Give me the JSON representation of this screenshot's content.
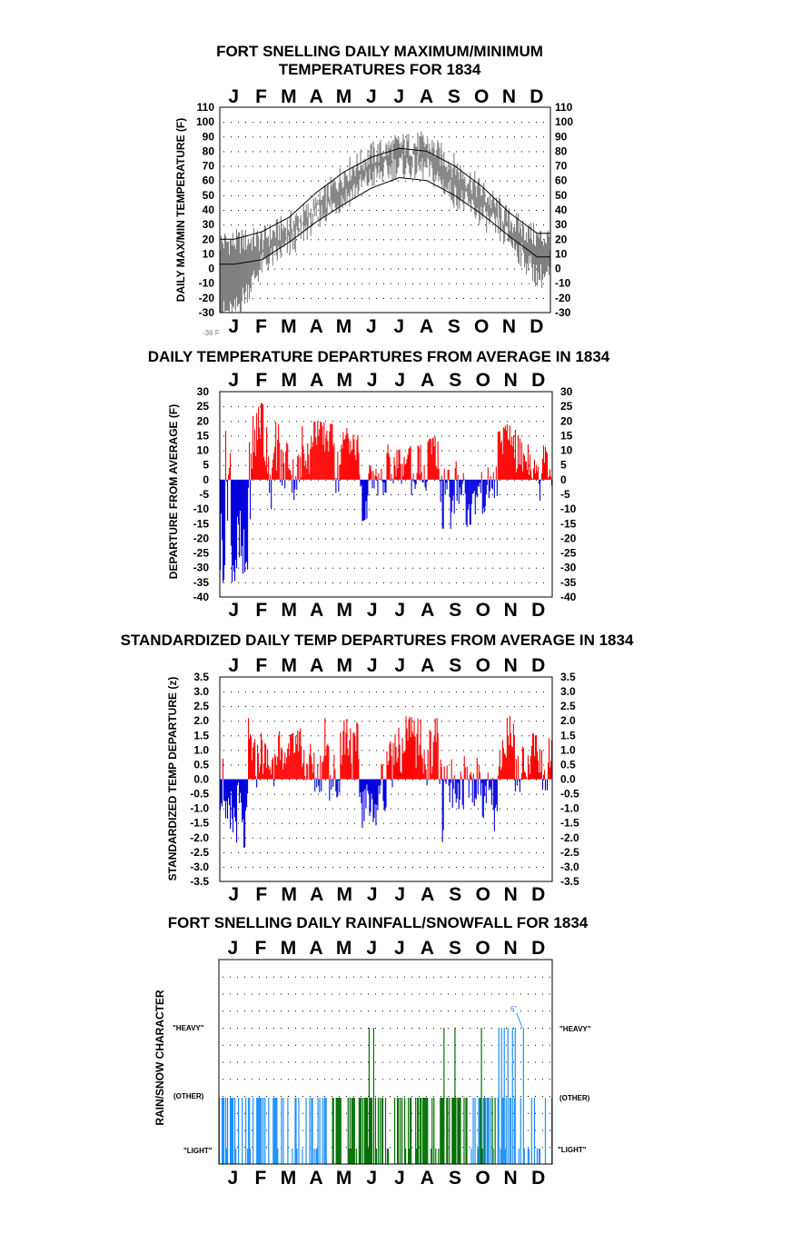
{
  "months": [
    "J",
    "F",
    "M",
    "A",
    "M",
    "J",
    "J",
    "A",
    "S",
    "O",
    "N",
    "D"
  ],
  "colors": {
    "positive": "#ff0000",
    "negative": "#0000dd",
    "temp_trace": "#808080",
    "normal_curve": "#000000",
    "rain": "#007000",
    "snow": "#1e90ff",
    "grid_dots": "#000000"
  },
  "chart_data": [
    {
      "id": "maxmin",
      "type": "line",
      "title_line1": "FORT SNELLING DAILY MAXIMUM/MINIMUM",
      "title_line2": "TEMPERATURES FOR 1834",
      "ylabel": "DAILY MAX/MIN TEMPERATURE (F)",
      "ylim": [
        -30,
        110
      ],
      "yticks": [
        110,
        100,
        90,
        80,
        70,
        60,
        50,
        40,
        30,
        20,
        10,
        0,
        -10,
        -20,
        -30
      ],
      "x": [
        "Jan",
        "Feb",
        "Mar",
        "Apr",
        "May",
        "Jun",
        "Jul",
        "Aug",
        "Sep",
        "Oct",
        "Nov",
        "Dec"
      ],
      "annotation": "-36 F",
      "series": [
        {
          "values": [
            18,
            20,
            30,
            42,
            65,
            78,
            84,
            85,
            70,
            53,
            33,
            21
          ]
        },
        {
          "values": [
            -30,
            2,
            15,
            35,
            48,
            62,
            70,
            68,
            50,
            36,
            20,
            -5
          ]
        },
        {
          "values": [
            20,
            25,
            35,
            52,
            66,
            76,
            82,
            80,
            70,
            56,
            38,
            24
          ]
        },
        {
          "values": [
            3,
            6,
            18,
            32,
            44,
            55,
            62,
            60,
            50,
            37,
            22,
            8
          ]
        }
      ]
    },
    {
      "id": "departures",
      "type": "bar",
      "title": "DAILY TEMPERATURE DEPARTURES FROM AVERAGE IN 1834",
      "ylabel": "DEPARTURE FROM AVERAGE (F)",
      "ylim": [
        -40,
        30
      ],
      "yticks": [
        30,
        25,
        20,
        15,
        10,
        5,
        0,
        -5,
        -10,
        -15,
        -20,
        -25,
        -30,
        -35,
        -40
      ],
      "x": [
        "Jan",
        "Feb",
        "Mar",
        "Apr",
        "May",
        "Jun",
        "Jul",
        "Aug",
        "Sep",
        "Oct",
        "Nov",
        "Dec"
      ],
      "values": [
        -35,
        26,
        18,
        20,
        18,
        -12,
        12,
        14,
        -19,
        -12,
        20,
        15
      ]
    },
    {
      "id": "standardized",
      "type": "bar",
      "title": "STANDARDIZED DAILY TEMP DEPARTURES FROM AVERAGE IN 1834",
      "ylabel": "STANDARDIZED TEMP DEPARTURE (z)",
      "ylim": [
        -3.5,
        3.5
      ],
      "yticks": [
        "3.5",
        "3.0",
        "2.5",
        "2.0",
        "1.5",
        "1.0",
        "0.5",
        "0.0",
        "-0.5",
        "-1.0",
        "-1.5",
        "-2.0",
        "-2.5",
        "-3.0",
        "-3.5"
      ],
      "x": [
        "Jan",
        "Feb",
        "Mar",
        "Apr",
        "May",
        "Jun",
        "Jul",
        "Aug",
        "Sep",
        "Oct",
        "Nov",
        "Dec"
      ],
      "values": [
        -2.6,
        1.9,
        1.5,
        2.1,
        2.3,
        -1.5,
        2.2,
        2.0,
        -2.3,
        -1.5,
        2.2,
        1.4
      ]
    },
    {
      "id": "precip",
      "type": "bar",
      "title": "FORT SNELLING DAILY RAINFALL/SNOWFALL FOR 1834",
      "ylabel": "RAIN/SNOW CHARACTER",
      "levels": [
        "\"LIGHT\"",
        "(OTHER)",
        "\"HEAVY\""
      ],
      "left_levels": [
        "\"LIGHT\"",
        "(OTHER)",
        "\"HEAVY\""
      ],
      "right_levels": [
        "\"LIGHT\"",
        "(OTHER)",
        "\"HEAVY\""
      ],
      "annotation": "6\"",
      "x": [
        "Jan",
        "Feb",
        "Mar",
        "Apr",
        "May",
        "Jun",
        "Jul",
        "Aug",
        "Sep",
        "Oct",
        "Nov",
        "Dec"
      ],
      "series": [
        {
          "values": [
            1,
            1,
            1,
            1,
            2,
            3,
            2,
            2,
            3,
            3,
            1,
            1
          ]
        },
        {
          "values": [
            2,
            2,
            2,
            1,
            0,
            0,
            0,
            0,
            0,
            1,
            3,
            1
          ]
        }
      ]
    }
  ]
}
